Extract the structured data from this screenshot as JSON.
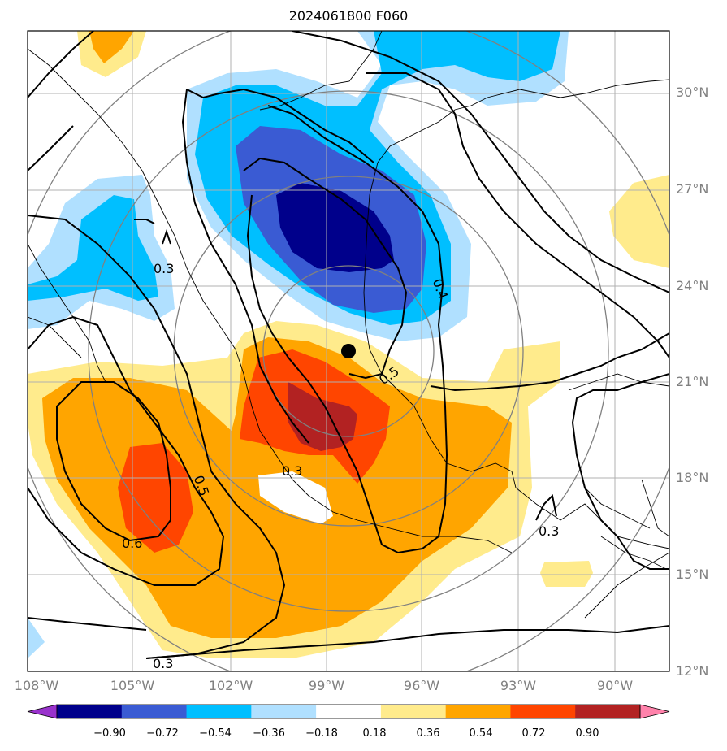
{
  "title": "2024061800 F060",
  "map": {
    "lat_ticks": [
      "30°N",
      "27°N",
      "24°N",
      "21°N",
      "18°N",
      "15°N",
      "12°N"
    ],
    "lon_ticks": [
      "108°W",
      "105°W",
      "102°W",
      "99°W",
      "96°W",
      "93°W",
      "90°W"
    ],
    "extent": {
      "lon_min": -108,
      "lon_max": -88.5,
      "lat_min": 12,
      "lat_max": 31.8
    },
    "center_marker": {
      "lon": -98.3,
      "lat": 21.9
    },
    "contour_labels": [
      "0.3",
      "0.4",
      "0.5",
      "0.3",
      "0.5",
      "0.6",
      "0.3",
      "0.3"
    ]
  },
  "colorbar": {
    "labels": [
      "−0.90",
      "−0.72",
      "−0.54",
      "−0.36",
      "−0.18",
      "0.18",
      "0.36",
      "0.54",
      "0.72",
      "0.90"
    ],
    "colors": [
      "#9932cc",
      "#00008b",
      "#3a5bd3",
      "#00bfff",
      "#b0e0ff",
      "#ffffff",
      "#ffeb8c",
      "#ffa500",
      "#ff4500",
      "#b22222",
      "#ff82ab"
    ]
  }
}
